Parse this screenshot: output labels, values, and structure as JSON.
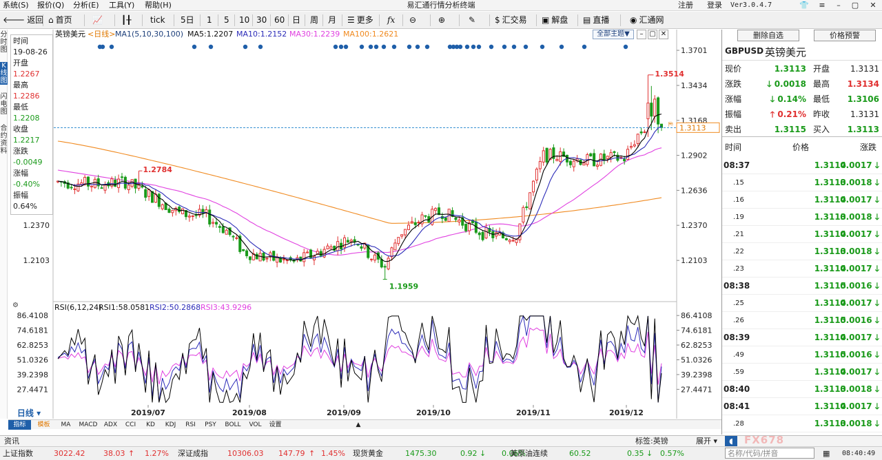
{
  "menubar": {
    "items": [
      "系统(S)",
      "报价(Q)",
      "分析(E)",
      "工具(Y)",
      "帮助(H)"
    ],
    "title": "易汇通行情分析终端",
    "register": "注册",
    "login": "登录",
    "version": "Ver3.0.4.7"
  },
  "toolbar": {
    "back": "返回",
    "home": "首页",
    "tick": "tick",
    "five_day": "5日",
    "periods": [
      "1",
      "5",
      "10",
      "30",
      "60",
      "日",
      "周",
      "月"
    ],
    "more": "更多",
    "huijiaoyi": "汇交易",
    "jiepan": "解盘",
    "zhibo": "直播",
    "huitongwang": "汇通网"
  },
  "left_tabs": [
    "分时图",
    "K线图",
    "闪电图",
    "合约资料"
  ],
  "chart": {
    "symbol_name": "英镑美元",
    "period_label": "<日线>",
    "ma_label": "MA1(5,10,30,100)",
    "ma5": "MA5:1.2207",
    "ma10": "MA10:1.2152",
    "ma30": "MA30:1.2239",
    "ma100": "MA100:1.2621",
    "theme_btn": "全部主题▼",
    "high_mark": "1.3514",
    "low_mark": "1.1959",
    "local_high_mark": "1.2784",
    "current_price_tag": "1.3113",
    "yticks_main": [
      "1.3701",
      "1.3434",
      "1.3168",
      "1.2902",
      "1.2636",
      "1.2370",
      "1.2103"
    ],
    "left_price_labels": [
      "1.2370",
      "1.2103"
    ],
    "rsi_label": "RSI(6,12,24)",
    "rsi1": "RSI1:58.0581",
    "rsi2": "RSI2:50.2868",
    "rsi3": "RSI3:43.9296",
    "yticks_rsi": [
      "86.4108",
      "74.6181",
      "62.8253",
      "51.0326",
      "39.2398",
      "27.4471"
    ],
    "xticks": [
      "2019/07",
      "2019/08",
      "2019/09",
      "2019/10",
      "2019/11",
      "2019/12"
    ]
  },
  "infobox": {
    "time_label": "时间",
    "time_value": "19-08-26",
    "open_label": "开盘",
    "open_value": "1.2267",
    "high_label": "最高",
    "high_value": "1.2286",
    "low_label": "最低",
    "low_value": "1.2208",
    "close_label": "收盘",
    "close_value": "1.2217",
    "change_label": "涨跌",
    "change_value": "-0.0049",
    "pct_label": "涨幅",
    "pct_value": "-0.40%",
    "amp_label": "振幅",
    "amp_value": "0.64%"
  },
  "right_panel": {
    "btn_delete": "删除自选",
    "btn_alert": "价格预警",
    "code": "GBPUSD",
    "name": "英镑美元",
    "quote": {
      "now_label": "现价",
      "now_value": "1.3113",
      "open_label": "开盘",
      "open_value": "1.3131",
      "chg_label": "涨跌",
      "chg_value": "0.0018",
      "high_label": "最高",
      "high_value": "1.3134",
      "pct_label": "涨幅",
      "pct_value": "0.14%",
      "low_label": "最低",
      "low_value": "1.3106",
      "amp_label": "振幅",
      "amp_value": "0.21%",
      "prev_label": "昨收",
      "prev_value": "1.3131",
      "sell_label": "卖出",
      "sell_value": "1.3115",
      "buy_label": "买入",
      "buy_value": "1.3113"
    },
    "tick_headers": [
      "时间",
      "价格",
      "涨跌"
    ],
    "ticks": [
      {
        "time": "08:37",
        "price": "1.3114",
        "chg": "0.0017"
      },
      {
        "time": ".15",
        "price": "1.3113",
        "chg": "0.0018"
      },
      {
        "time": ".16",
        "price": "1.3114",
        "chg": "0.0017"
      },
      {
        "time": ".19",
        "price": "1.3113",
        "chg": "0.0018"
      },
      {
        "time": ".21",
        "price": "1.3114",
        "chg": "0.0017"
      },
      {
        "time": ".22",
        "price": "1.3113",
        "chg": "0.0018"
      },
      {
        "time": ".23",
        "price": "1.3114",
        "chg": "0.0017"
      },
      {
        "time": "08:38",
        "price": "1.3115",
        "chg": "0.0016"
      },
      {
        "time": ".25",
        "price": "1.3114",
        "chg": "0.0017"
      },
      {
        "time": ".26",
        "price": "1.3115",
        "chg": "0.0016"
      },
      {
        "time": "08:39",
        "price": "1.3114",
        "chg": "0.0017"
      },
      {
        "time": ".49",
        "price": "1.3115",
        "chg": "0.0016"
      },
      {
        "time": ".59",
        "price": "1.3114",
        "chg": "0.0017"
      },
      {
        "time": "08:40",
        "price": "1.3113",
        "chg": "0.0018"
      },
      {
        "time": "08:41",
        "price": "1.3114",
        "chg": "0.0017"
      },
      {
        "time": ".28",
        "price": "1.3113",
        "chg": "0.0018"
      }
    ]
  },
  "subtabs": {
    "period": "日线",
    "items": [
      "指标",
      "模板",
      "MA",
      "MACD",
      "ADX",
      "CCI",
      "KD",
      "KDJ",
      "RSI",
      "PSY",
      "BOLL",
      "VOL",
      "设置"
    ]
  },
  "newsbar": {
    "label": "资讯",
    "tag": "标签:英镑",
    "expand": "展开",
    "search_placeholder": "名称/代码/拼音"
  },
  "statusbar": {
    "items": [
      {
        "name": "上证指数",
        "value": "3022.42",
        "chg": "38.03",
        "pct": "1.27%"
      },
      {
        "name": "深证成指",
        "value": "10306.03",
        "chg": "147.79",
        "pct": "1.45%"
      },
      {
        "name": "现货黄金",
        "value": "1475.30",
        "chg": "0.92",
        "pct": "0.06%"
      },
      {
        "name": "美原油连续",
        "value": "60.52",
        "chg": "0.35",
        "pct": "0.57%"
      }
    ],
    "clock": "08:40:49"
  },
  "colors": {
    "up": "#e03030",
    "down": "#1a9a1a",
    "ma5": "#000000",
    "ma10": "#2b2bb8",
    "ma30": "#e040e0",
    "ma100": "#f08a20",
    "accent": "#1f5fa9"
  }
}
